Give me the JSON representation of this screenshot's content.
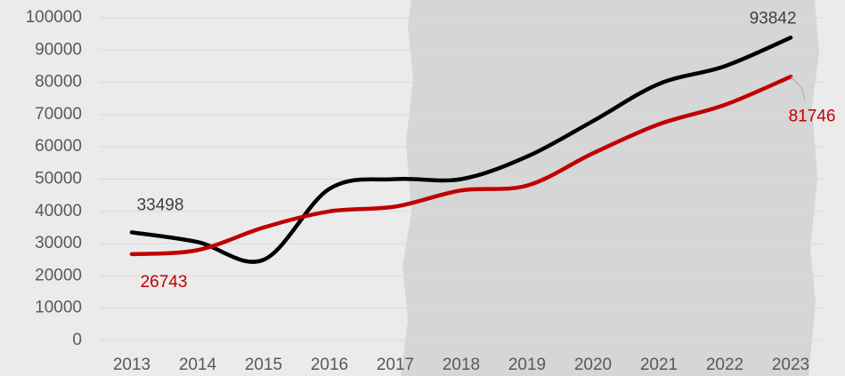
{
  "chart_data": {
    "type": "line",
    "categories": [
      "2013",
      "2014",
      "2015",
      "2016",
      "2017",
      "2018",
      "2019",
      "2020",
      "2021",
      "2022",
      "2023"
    ],
    "series": [
      {
        "color": "#000000",
        "values": [
          33498,
          30500,
          25000,
          47000,
          50000,
          50000,
          57000,
          68000,
          79500,
          85000,
          93842
        ]
      },
      {
        "color": "#c00000",
        "values": [
          26743,
          28000,
          35000,
          40000,
          41500,
          46500,
          48000,
          58000,
          67000,
          73000,
          81746
        ]
      }
    ],
    "ylim": [
      0,
      100000
    ],
    "yticks": [
      0,
      10000,
      20000,
      30000,
      40000,
      50000,
      60000,
      70000,
      80000,
      90000,
      100000
    ],
    "grid": true
  }
}
